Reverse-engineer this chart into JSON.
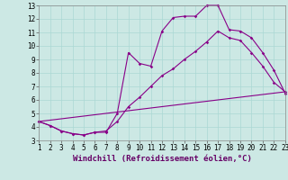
{
  "xlabel": "Windchill (Refroidissement éolien,°C)",
  "background_color": "#cce8e4",
  "line_color": "#880088",
  "grid_color": "#aad8d4",
  "xlim": [
    1,
    23
  ],
  "ylim": [
    3,
    13
  ],
  "xticks": [
    1,
    2,
    3,
    4,
    5,
    6,
    7,
    8,
    9,
    10,
    11,
    12,
    13,
    14,
    15,
    16,
    17,
    18,
    19,
    20,
    21,
    22,
    23
  ],
  "yticks": [
    3,
    4,
    5,
    6,
    7,
    8,
    9,
    10,
    11,
    12,
    13
  ],
  "curve1_x": [
    1,
    2,
    3,
    4,
    5,
    6,
    7,
    8,
    9,
    10,
    11,
    12,
    13,
    14,
    15,
    16,
    17,
    18,
    19,
    20,
    21,
    22,
    23
  ],
  "curve1_y": [
    4.4,
    4.1,
    3.7,
    3.5,
    3.4,
    3.6,
    3.6,
    5.0,
    9.5,
    8.7,
    8.5,
    11.1,
    12.1,
    12.2,
    12.2,
    13.0,
    13.0,
    11.2,
    11.1,
    10.6,
    9.5,
    8.2,
    6.5
  ],
  "curve2_x": [
    1,
    2,
    3,
    4,
    5,
    6,
    7,
    8,
    9,
    10,
    11,
    12,
    13,
    14,
    15,
    16,
    17,
    18,
    19,
    20,
    21,
    22,
    23
  ],
  "curve2_y": [
    4.4,
    4.1,
    3.7,
    3.5,
    3.4,
    3.6,
    3.7,
    4.4,
    5.5,
    6.2,
    7.0,
    7.8,
    8.3,
    9.0,
    9.6,
    10.3,
    11.1,
    10.6,
    10.4,
    9.5,
    8.5,
    7.3,
    6.6
  ],
  "curve3_x": [
    1,
    23
  ],
  "curve3_y": [
    4.4,
    6.6
  ],
  "xlabel_fontsize": 6.5,
  "tick_fontsize": 5.5
}
